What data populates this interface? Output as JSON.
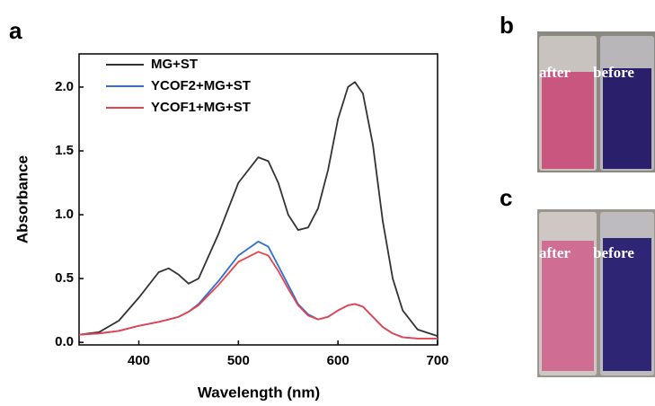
{
  "chart_data": {
    "type": "line",
    "x_label": "Wavelength (nm)",
    "y_label": "Absorbance",
    "x": [
      340,
      360,
      380,
      400,
      420,
      430,
      440,
      450,
      460,
      480,
      500,
      520,
      530,
      540,
      550,
      560,
      570,
      580,
      590,
      600,
      610,
      617,
      625,
      635,
      645,
      655,
      665,
      680,
      700
    ],
    "series": [
      {
        "name": "MG+ST",
        "color": "#333333",
        "values": [
          0.06,
          0.08,
          0.17,
          0.35,
          0.55,
          0.58,
          0.53,
          0.46,
          0.5,
          0.85,
          1.25,
          1.45,
          1.42,
          1.25,
          1.0,
          0.88,
          0.9,
          1.05,
          1.35,
          1.75,
          2.0,
          2.04,
          1.95,
          1.55,
          0.95,
          0.5,
          0.25,
          0.1,
          0.05
        ]
      },
      {
        "name": "YCOF2+MG+ST",
        "color": "#2f6fd6",
        "values": [
          0.06,
          0.07,
          0.09,
          0.13,
          0.16,
          0.18,
          0.2,
          0.24,
          0.3,
          0.48,
          0.68,
          0.79,
          0.75,
          0.6,
          0.45,
          0.3,
          0.22,
          0.18,
          0.2,
          0.25,
          0.29,
          0.3,
          0.28,
          0.2,
          0.12,
          0.07,
          0.04,
          0.03,
          0.03
        ]
      },
      {
        "name": "YCOF1+MG+ST",
        "color": "#e8434b",
        "values": [
          0.06,
          0.07,
          0.09,
          0.13,
          0.16,
          0.18,
          0.2,
          0.24,
          0.29,
          0.45,
          0.63,
          0.71,
          0.68,
          0.56,
          0.42,
          0.29,
          0.21,
          0.18,
          0.2,
          0.25,
          0.29,
          0.3,
          0.28,
          0.2,
          0.12,
          0.07,
          0.04,
          0.03,
          0.03
        ]
      }
    ],
    "xlim": [
      340,
      700
    ],
    "xticks": [
      400,
      500,
      600,
      700
    ],
    "ylim": [
      -0.02,
      2.26
    ],
    "yticks": [
      {
        "value": 0,
        "label": "0.0"
      },
      0.5,
      {
        "value": 1,
        "label": "1.0"
      },
      1.5,
      {
        "value": 2,
        "label": "2.0"
      }
    ],
    "legend": "upper left"
  },
  "panel_labels": [
    "a",
    "b",
    "c"
  ],
  "photos": [
    {
      "left": "after",
      "right": "before"
    },
    {
      "left": "after",
      "right": "before"
    }
  ]
}
